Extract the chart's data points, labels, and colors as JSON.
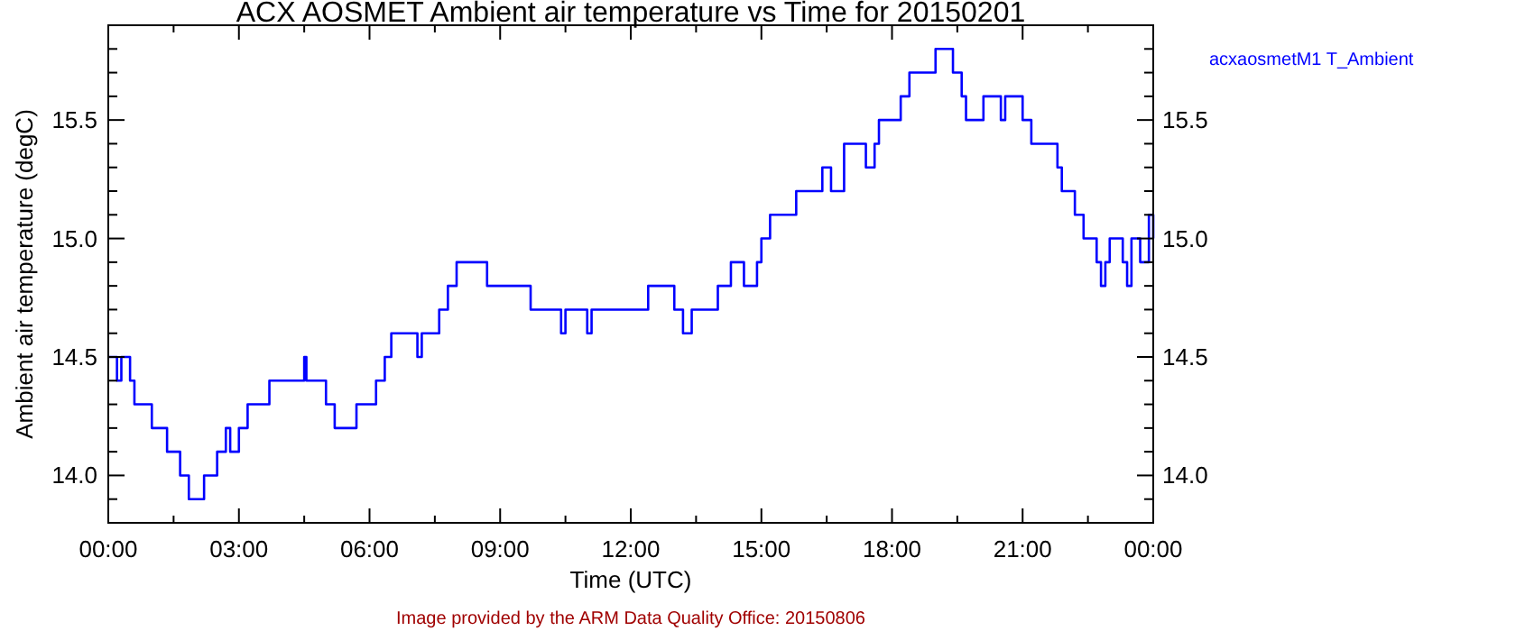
{
  "chart_data": {
    "type": "step",
    "title": "ACX AOSMET Ambient air temperature vs Time for 20150201",
    "xlabel": "Time (UTC)",
    "ylabel": "Ambient air temperature (degC)",
    "annotations": [
      "Image provided by the ARM Data Quality Office: 20150806"
    ],
    "legend": "top right",
    "grid": false,
    "xlim": [
      0,
      24
    ],
    "ylim": [
      13.8,
      15.9
    ],
    "xticks": [
      {
        "value": 0,
        "label": "00:00"
      },
      {
        "value": 1.5,
        "label": null
      },
      {
        "value": 3,
        "label": "03:00"
      },
      {
        "value": 4.5,
        "label": null
      },
      {
        "value": 6,
        "label": "06:00"
      },
      {
        "value": 7.5,
        "label": null
      },
      {
        "value": 9,
        "label": "09:00"
      },
      {
        "value": 10.5,
        "label": null
      },
      {
        "value": 12,
        "label": "12:00"
      },
      {
        "value": 13.5,
        "label": null
      },
      {
        "value": 15,
        "label": "15:00"
      },
      {
        "value": 16.5,
        "label": null
      },
      {
        "value": 18,
        "label": "18:00"
      },
      {
        "value": 19.5,
        "label": null
      },
      {
        "value": 21,
        "label": "21:00"
      },
      {
        "value": 22.5,
        "label": null
      },
      {
        "value": 24,
        "label": "00:00"
      }
    ],
    "yticks": [
      {
        "value": 13.9,
        "label": null
      },
      {
        "value": 14,
        "label": "14.0"
      },
      {
        "value": 14.1,
        "label": null
      },
      {
        "value": 14.2,
        "label": null
      },
      {
        "value": 14.3,
        "label": null
      },
      {
        "value": 14.4,
        "label": null
      },
      {
        "value": 14.5,
        "label": "14.5"
      },
      {
        "value": 14.6,
        "label": null
      },
      {
        "value": 14.7,
        "label": null
      },
      {
        "value": 14.8,
        "label": null
      },
      {
        "value": 14.9,
        "label": null
      },
      {
        "value": 15,
        "label": "15.0"
      },
      {
        "value": 15.1,
        "label": null
      },
      {
        "value": 15.2,
        "label": null
      },
      {
        "value": 15.3,
        "label": null
      },
      {
        "value": 15.4,
        "label": null
      },
      {
        "value": 15.5,
        "label": "15.5"
      },
      {
        "value": 15.6,
        "label": null
      },
      {
        "value": 15.7,
        "label": null
      },
      {
        "value": 15.8,
        "label": null
      }
    ],
    "y2lim": [
      13.8,
      15.9
    ],
    "y2ticks": [
      {
        "value": 13.9,
        "label": null
      },
      {
        "value": 14,
        "label": "14.0"
      },
      {
        "value": 14.1,
        "label": null
      },
      {
        "value": 14.2,
        "label": null
      },
      {
        "value": 14.3,
        "label": null
      },
      {
        "value": 14.4,
        "label": null
      },
      {
        "value": 14.5,
        "label": "14.5"
      },
      {
        "value": 14.6,
        "label": null
      },
      {
        "value": 14.7,
        "label": null
      },
      {
        "value": 14.8,
        "label": null
      },
      {
        "value": 14.9,
        "label": null
      },
      {
        "value": 15,
        "label": "15.0"
      },
      {
        "value": 15.1,
        "label": null
      },
      {
        "value": 15.2,
        "label": null
      },
      {
        "value": 15.3,
        "label": null
      },
      {
        "value": 15.4,
        "label": null
      },
      {
        "value": 15.5,
        "label": "15.5"
      },
      {
        "value": 15.6,
        "label": null
      },
      {
        "value": 15.7,
        "label": null
      },
      {
        "value": 15.8,
        "label": null
      }
    ],
    "series": [
      {
        "name": "acxaosmetM1 T_Ambient",
        "color": "#0000ff",
        "x": [
          0,
          0.2,
          0.3,
          0.5,
          0.6,
          1.0,
          1.35,
          1.65,
          1.85,
          2.2,
          2.5,
          2.7,
          2.8,
          3.0,
          3.2,
          3.7,
          4.5,
          4.55,
          5.0,
          5.2,
          5.7,
          6.15,
          6.35,
          6.5,
          7.1,
          7.2,
          7.6,
          7.8,
          8.0,
          8.7,
          9.7,
          10.4,
          10.5,
          11.0,
          11.1,
          12.4,
          13.0,
          13.2,
          13.4,
          14.0,
          14.3,
          14.6,
          14.9,
          15.0,
          15.2,
          15.8,
          16.4,
          16.6,
          16.9,
          17.4,
          17.6,
          17.7,
          18.2,
          18.4,
          19.0,
          19.4,
          19.6,
          19.7,
          20.1,
          20.5,
          20.6,
          21.0,
          21.2,
          21.8,
          21.9,
          22.2,
          22.4,
          22.7,
          22.8,
          22.9,
          23.0,
          23.3,
          23.4,
          23.5,
          23.7,
          23.9,
          24
        ],
        "values": [
          14.5,
          14.4,
          14.5,
          14.4,
          14.3,
          14.2,
          14.1,
          14.0,
          13.9,
          14.0,
          14.1,
          14.2,
          14.1,
          14.2,
          14.3,
          14.4,
          14.5,
          14.4,
          14.3,
          14.2,
          14.3,
          14.4,
          14.5,
          14.6,
          14.5,
          14.6,
          14.7,
          14.8,
          14.9,
          14.8,
          14.7,
          14.6,
          14.7,
          14.6,
          14.7,
          14.8,
          14.7,
          14.6,
          14.7,
          14.8,
          14.9,
          14.8,
          14.9,
          15.0,
          15.1,
          15.2,
          15.3,
          15.2,
          15.4,
          15.3,
          15.4,
          15.5,
          15.6,
          15.7,
          15.8,
          15.7,
          15.6,
          15.5,
          15.6,
          15.5,
          15.6,
          15.5,
          15.4,
          15.3,
          15.2,
          15.1,
          15.0,
          14.9,
          14.8,
          14.9,
          15.0,
          14.9,
          14.8,
          15.0,
          14.9,
          15.1,
          15.0
        ]
      }
    ]
  }
}
